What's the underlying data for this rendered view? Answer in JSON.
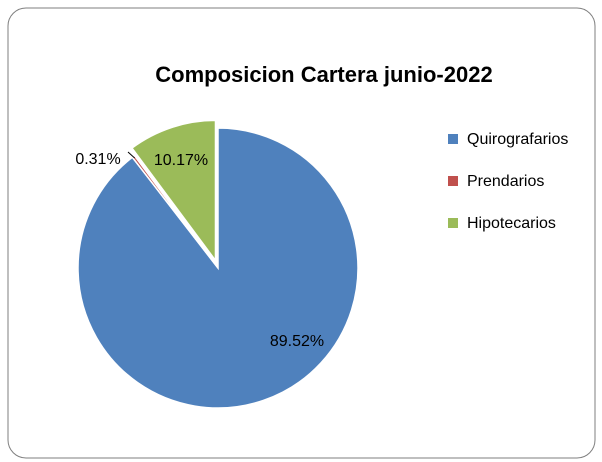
{
  "chart_data": {
    "type": "pie",
    "title": "Composicion Cartera junio-2022",
    "categories": [
      "Quirografarios",
      "Prendarios",
      "Hipotecarios"
    ],
    "values": [
      89.52,
      0.31,
      10.17
    ],
    "value_labels": [
      "89.52%",
      "0.31%",
      "10.17%"
    ],
    "colors": [
      "#4f81bd",
      "#c0504d",
      "#9bbb59"
    ],
    "legend": "right"
  }
}
